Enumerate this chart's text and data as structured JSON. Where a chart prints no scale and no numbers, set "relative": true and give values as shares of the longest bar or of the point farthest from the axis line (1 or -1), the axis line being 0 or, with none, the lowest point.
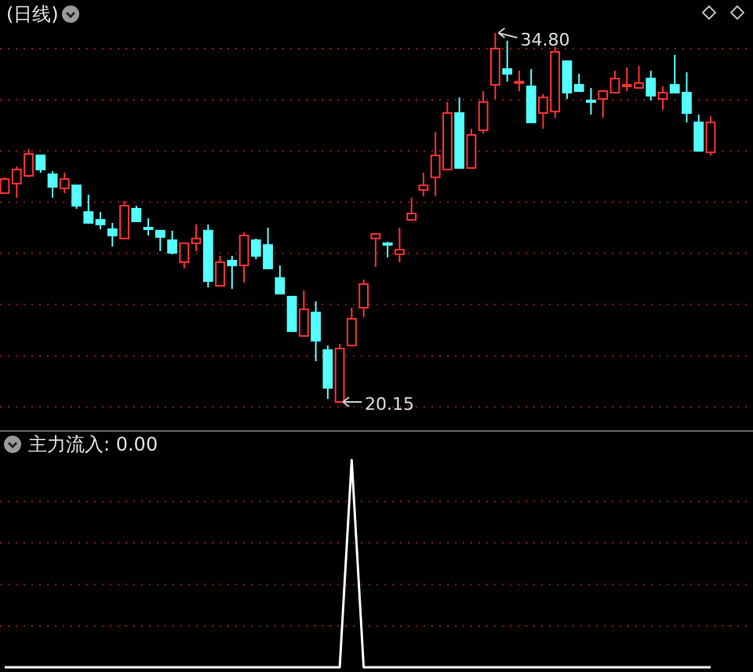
{
  "chart_data": [
    {
      "type": "candlestick",
      "title": "(日线)",
      "grid": true,
      "annotations": [
        "34.80",
        "20.15"
      ],
      "yticks": [
        {
          "value": 34.18,
          "label": null
        },
        {
          "value": 32.15,
          "label": null
        },
        {
          "value": 30.11,
          "label": null
        },
        {
          "value": 28.08,
          "label": null
        },
        {
          "value": 26.05,
          "label": null
        },
        {
          "value": 24.02,
          "label": null
        },
        {
          "value": 21.98,
          "label": null
        },
        {
          "value": 19.95,
          "label": null
        }
      ],
      "categories": [
        null,
        null,
        null,
        null,
        null,
        null,
        null,
        null,
        null,
        null,
        null,
        null,
        null,
        null,
        null,
        null,
        null,
        null,
        null,
        null,
        null,
        null,
        null,
        null,
        null,
        null,
        null,
        null,
        null,
        null,
        null,
        null,
        null,
        null,
        null,
        null,
        null,
        null,
        null,
        null,
        null,
        null,
        null,
        null,
        null,
        null,
        null,
        null,
        null,
        null,
        null,
        null,
        null,
        null,
        null,
        null,
        null,
        null,
        null,
        null
      ],
      "colors": [
        "#ff3232",
        "#ff3232",
        "#ff3232",
        "#54ffff",
        "#54ffff",
        "#ff3232",
        "#54ffff",
        "#54ffff",
        "#54ffff",
        "#54ffff",
        "#ff3232",
        "#54ffff",
        "#54ffff",
        "#54ffff",
        "#54ffff",
        "#ff3232",
        "#ff3232",
        "#54ffff",
        "#ff3232",
        "#54ffff",
        "#ff3232",
        "#54ffff",
        "#54ffff",
        "#54ffff",
        "#54ffff",
        "#ff3232",
        "#54ffff",
        "#54ffff",
        "#ff3232",
        "#ff3232",
        "#ff3232",
        "#ff3232",
        "#54ffff",
        "#ff3232",
        "#ff3232",
        "#ff3232",
        "#ff3232",
        "#ff3232",
        "#54ffff",
        "#ff3232",
        "#ff3232",
        "#ff3232",
        "#54ffff",
        "#ff3232",
        "#54ffff",
        "#ff3232",
        "#ff3232",
        "#54ffff",
        "#54ffff",
        "#54ffff",
        "#ff3232",
        "#ff3232",
        "#ff3232",
        "#ff3232",
        "#54ffff",
        "#ff3232",
        "#54ffff",
        "#54ffff",
        "#54ffff",
        "#ff3232"
      ],
      "ohlc": [
        [
          28.44,
          29.07,
          28.44,
          29.0
        ],
        [
          28.82,
          29.5,
          28.26,
          29.38
        ],
        [
          29.13,
          30.19,
          29.07,
          30.0
        ],
        [
          29.94,
          29.94,
          29.25,
          29.38
        ],
        [
          29.19,
          29.31,
          28.26,
          28.69
        ],
        [
          28.63,
          29.25,
          28.44,
          29.0
        ],
        [
          28.75,
          28.75,
          27.82,
          27.94
        ],
        [
          27.69,
          28.38,
          27.26,
          27.26
        ],
        [
          27.38,
          27.69,
          27.01,
          27.2
        ],
        [
          27.01,
          27.26,
          26.32,
          26.76
        ],
        [
          26.64,
          28.13,
          26.64,
          27.94
        ],
        [
          27.82,
          27.94,
          27.32,
          27.32
        ],
        [
          27.07,
          27.44,
          26.76,
          27.07
        ],
        [
          26.95,
          26.95,
          26.14,
          26.7
        ],
        [
          26.57,
          26.95,
          26.01,
          26.07
        ],
        [
          25.7,
          26.45,
          25.45,
          26.45
        ],
        [
          26.45,
          27.2,
          26.14,
          26.64
        ],
        [
          26.95,
          27.2,
          24.7,
          24.95
        ],
        [
          24.76,
          25.95,
          24.76,
          25.7
        ],
        [
          25.76,
          25.95,
          24.64,
          25.57
        ],
        [
          25.57,
          26.88,
          24.89,
          26.76
        ],
        [
          26.57,
          26.64,
          25.82,
          25.95
        ],
        [
          26.38,
          27.07,
          25.45,
          25.45
        ],
        [
          25.07,
          25.57,
          24.45,
          24.45
        ],
        [
          24.33,
          24.33,
          22.96,
          22.96
        ],
        [
          22.77,
          24.58,
          22.77,
          23.83
        ],
        [
          23.7,
          24.14,
          21.77,
          22.58
        ],
        [
          22.21,
          22.39,
          20.27,
          20.71
        ],
        [
          20.15,
          22.46,
          20.15,
          22.27
        ],
        [
          22.39,
          23.89,
          22.39,
          23.45
        ],
        [
          23.89,
          25.01,
          23.52,
          24.83
        ],
        [
          26.64,
          26.82,
          25.51,
          26.82
        ],
        [
          26.45,
          26.51,
          25.89,
          26.45
        ],
        [
          26.01,
          27.07,
          25.7,
          26.2
        ],
        [
          27.38,
          28.26,
          27.38,
          27.63
        ],
        [
          28.57,
          29.25,
          28.32,
          28.75
        ],
        [
          29.07,
          30.87,
          28.32,
          29.94
        ],
        [
          29.38,
          32.06,
          29.38,
          31.62
        ],
        [
          31.62,
          32.24,
          29.44,
          29.44
        ],
        [
          29.44,
          31.0,
          29.44,
          30.75
        ],
        [
          30.94,
          32.49,
          30.81,
          32.06
        ],
        [
          32.74,
          34.8,
          32.18,
          34.18
        ],
        [
          33.37,
          34.49,
          32.87,
          33.18
        ],
        [
          32.87,
          33.3,
          32.49,
          32.87
        ],
        [
          32.68,
          33.37,
          31.25,
          31.25
        ],
        [
          31.62,
          32.37,
          31.0,
          32.24
        ],
        [
          31.68,
          34.24,
          31.43,
          34.05
        ],
        [
          33.68,
          33.68,
          32.18,
          32.43
        ],
        [
          32.74,
          33.18,
          32.49,
          32.49
        ],
        [
          32.12,
          32.62,
          31.56,
          32.12
        ],
        [
          32.18,
          32.49,
          31.43,
          32.49
        ],
        [
          32.43,
          33.3,
          32.43,
          32.99
        ],
        [
          32.68,
          33.43,
          32.49,
          32.74
        ],
        [
          32.62,
          33.49,
          32.62,
          32.81
        ],
        [
          32.99,
          33.3,
          32.12,
          32.31
        ],
        [
          32.18,
          32.68,
          31.75,
          32.43
        ],
        [
          32.74,
          33.93,
          32.43,
          32.43
        ],
        [
          32.43,
          33.24,
          31.25,
          31.62
        ],
        [
          31.25,
          31.56,
          30.12,
          30.12
        ],
        [
          30.06,
          31.5,
          29.94,
          31.25
        ]
      ]
    },
    {
      "type": "line",
      "title": "主力流入: 0.00",
      "relative": true,
      "color": "#ffffff",
      "ref_lines": [
        {
          "axis": "y",
          "value": 0.8,
          "color": "#8b1a1a",
          "line_style": "dotted"
        },
        {
          "axis": "y",
          "value": 0.6,
          "color": "#8b1a1a",
          "line_style": "dotted"
        },
        {
          "axis": "y",
          "value": 0.4,
          "color": "#8b1a1a",
          "line_style": "dotted"
        },
        {
          "axis": "y",
          "value": 0.2,
          "color": "#8b1a1a",
          "line_style": "dotted"
        }
      ],
      "categories": [
        null,
        null,
        null,
        null,
        null,
        null,
        null,
        null,
        null,
        null,
        null,
        null,
        null,
        null,
        null,
        null,
        null,
        null,
        null,
        null,
        null,
        null,
        null,
        null,
        null,
        null,
        null,
        null,
        null,
        null,
        null,
        null,
        null,
        null,
        null,
        null,
        null,
        null,
        null,
        null,
        null,
        null,
        null,
        null,
        null,
        null,
        null,
        null,
        null,
        null,
        null,
        null,
        null,
        null,
        null,
        null,
        null,
        null,
        null,
        null
      ],
      "values": [
        0,
        0,
        0,
        0,
        0,
        0,
        0,
        0,
        0,
        0,
        0,
        0,
        0,
        0,
        0,
        0,
        0,
        0,
        0,
        0,
        0,
        0,
        0,
        0,
        0,
        0,
        0,
        0,
        0,
        1,
        0,
        0,
        0,
        0,
        0,
        0,
        0,
        0,
        0,
        0,
        0,
        0,
        0,
        0,
        0,
        0,
        0,
        0,
        0,
        0,
        0,
        0,
        0,
        0,
        0,
        0,
        0,
        0,
        0,
        0
      ]
    }
  ]
}
